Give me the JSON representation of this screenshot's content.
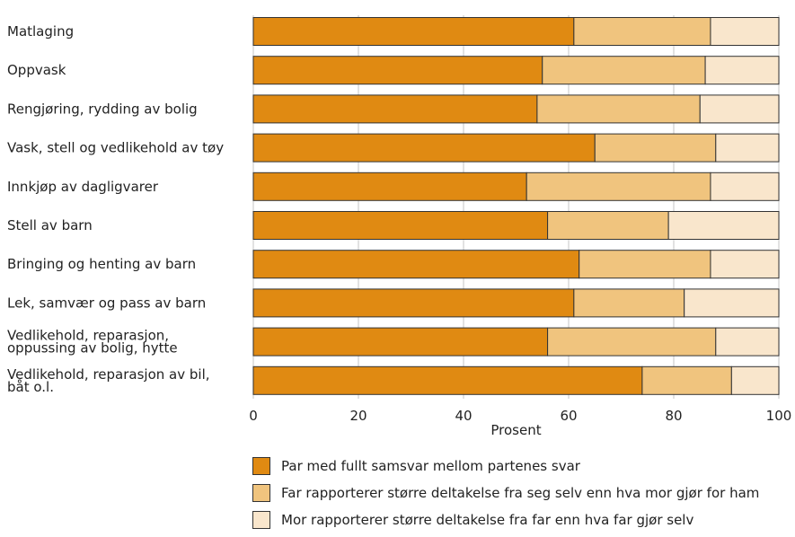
{
  "chart_data": {
    "type": "bar",
    "orientation": "horizontal",
    "stacked": true,
    "categories": [
      "Matlaging",
      "Oppvask",
      "Rengjøring, rydding av bolig",
      "Vask, stell og vedlikehold av tøy",
      "Innkjøp av dagligvarer",
      "Stell av barn",
      "Bringing og henting av barn",
      "Lek, samvær og pass av barn",
      "Vedlikehold, reparasjon,\noppussing av bolig, hytte",
      "Vedlikehold, reparasjon av bil,\nbåt o.l."
    ],
    "series": [
      {
        "name": "Par med fullt samsvar mellom partenes svar",
        "color": "#e08a12",
        "values": [
          61,
          55,
          54,
          65,
          52,
          56,
          62,
          61,
          56,
          74
        ]
      },
      {
        "name": "Far rapporterer større deltakelse fra seg selv enn hva mor gjør for ham",
        "color": "#f0c47e",
        "values": [
          26,
          31,
          31,
          23,
          35,
          23,
          25,
          21,
          32,
          17
        ]
      },
      {
        "name": "Mor rapporterer større deltakelse fra far enn hva far gjør selv",
        "color": "#f9e6cc",
        "values": [
          13,
          14,
          15,
          12,
          13,
          21,
          13,
          18,
          12,
          9
        ]
      }
    ],
    "xlabel": "Prosent",
    "xlim": [
      0,
      100
    ],
    "xticks": [
      0,
      20,
      40,
      60,
      80,
      100
    ],
    "grid": "vertical",
    "legend": "bottom"
  }
}
